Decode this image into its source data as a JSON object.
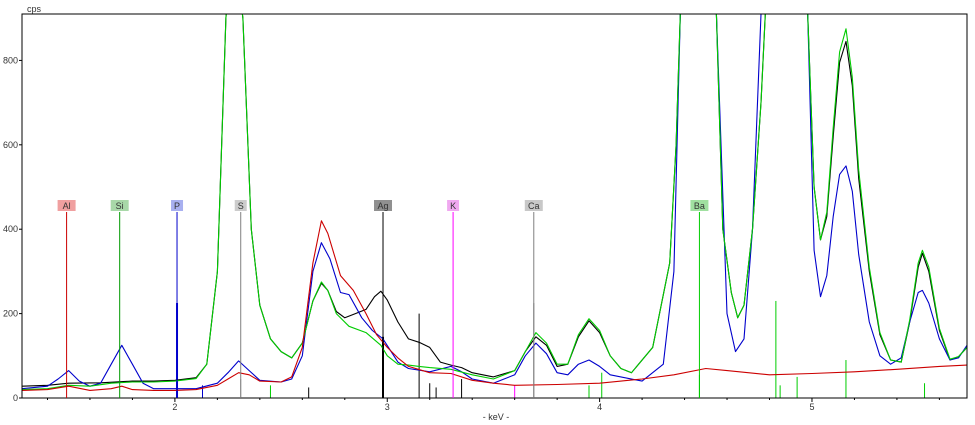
{
  "chart_data": {
    "type": "line",
    "title": "",
    "ylabel": "cps",
    "xlabel": "- keV -",
    "xlim": [
      1.28,
      5.73
    ],
    "ylim": [
      0,
      910
    ],
    "x_ticks": [
      2,
      3,
      4,
      5
    ],
    "y_ticks": [
      0,
      200,
      400,
      600,
      800
    ],
    "grid": false,
    "series": [
      {
        "color": "#000000",
        "points": [
          [
            1.28,
            28
          ],
          [
            1.4,
            30
          ],
          [
            1.5,
            35
          ],
          [
            1.65,
            36
          ],
          [
            1.8,
            40
          ],
          [
            1.9,
            40
          ],
          [
            2.0,
            42
          ],
          [
            2.1,
            48
          ],
          [
            2.15,
            80
          ],
          [
            2.2,
            300
          ],
          [
            2.24,
            900
          ],
          [
            2.27,
            1100
          ],
          [
            2.32,
            900
          ],
          [
            2.36,
            400
          ],
          [
            2.4,
            220
          ],
          [
            2.45,
            140
          ],
          [
            2.5,
            110
          ],
          [
            2.55,
            95
          ],
          [
            2.6,
            130
          ],
          [
            2.65,
            230
          ],
          [
            2.69,
            272
          ],
          [
            2.72,
            255
          ],
          [
            2.76,
            205
          ],
          [
            2.8,
            190
          ],
          [
            2.85,
            200
          ],
          [
            2.9,
            210
          ],
          [
            2.94,
            240
          ],
          [
            2.97,
            253
          ],
          [
            3.0,
            232
          ],
          [
            3.05,
            180
          ],
          [
            3.1,
            140
          ],
          [
            3.15,
            132
          ],
          [
            3.2,
            120
          ],
          [
            3.25,
            85
          ],
          [
            3.3,
            78
          ],
          [
            3.35,
            72
          ],
          [
            3.4,
            60
          ],
          [
            3.5,
            50
          ],
          [
            3.6,
            65
          ],
          [
            3.65,
            110
          ],
          [
            3.7,
            145
          ],
          [
            3.75,
            125
          ],
          [
            3.8,
            75
          ],
          [
            3.85,
            80
          ],
          [
            3.9,
            145
          ],
          [
            3.95,
            183
          ],
          [
            4.0,
            155
          ],
          [
            4.05,
            100
          ],
          [
            4.1,
            70
          ],
          [
            4.15,
            60
          ],
          [
            4.25,
            120
          ],
          [
            4.33,
            320
          ],
          [
            4.36,
            600
          ],
          [
            4.38,
            910
          ],
          [
            4.55,
            910
          ],
          [
            4.58,
            400
          ],
          [
            4.62,
            250
          ],
          [
            4.65,
            190
          ],
          [
            4.68,
            220
          ],
          [
            4.72,
            400
          ],
          [
            4.76,
            700
          ],
          [
            4.78,
            910
          ],
          [
            4.98,
            910
          ],
          [
            5.01,
            500
          ],
          [
            5.04,
            375
          ],
          [
            5.07,
            430
          ],
          [
            5.1,
            620
          ],
          [
            5.13,
            795
          ],
          [
            5.16,
            845
          ],
          [
            5.19,
            740
          ],
          [
            5.22,
            520
          ],
          [
            5.27,
            300
          ],
          [
            5.32,
            150
          ],
          [
            5.37,
            90
          ],
          [
            5.42,
            85
          ],
          [
            5.46,
            180
          ],
          [
            5.5,
            310
          ],
          [
            5.52,
            343
          ],
          [
            5.55,
            300
          ],
          [
            5.6,
            160
          ],
          [
            5.65,
            90
          ],
          [
            5.69,
            98
          ],
          [
            5.73,
            120
          ]
        ]
      },
      {
        "color": "#0000cc",
        "points": [
          [
            1.28,
            22
          ],
          [
            1.4,
            28
          ],
          [
            1.45,
            45
          ],
          [
            1.5,
            65
          ],
          [
            1.55,
            40
          ],
          [
            1.6,
            28
          ],
          [
            1.65,
            35
          ],
          [
            1.7,
            80
          ],
          [
            1.75,
            125
          ],
          [
            1.8,
            80
          ],
          [
            1.85,
            35
          ],
          [
            1.9,
            22
          ],
          [
            2.0,
            22
          ],
          [
            2.1,
            22
          ],
          [
            2.2,
            35
          ],
          [
            2.25,
            60
          ],
          [
            2.3,
            88
          ],
          [
            2.35,
            65
          ],
          [
            2.4,
            42
          ],
          [
            2.5,
            38
          ],
          [
            2.55,
            45
          ],
          [
            2.6,
            100
          ],
          [
            2.65,
            300
          ],
          [
            2.69,
            368
          ],
          [
            2.73,
            330
          ],
          [
            2.78,
            250
          ],
          [
            2.82,
            245
          ],
          [
            2.88,
            190
          ],
          [
            2.93,
            160
          ],
          [
            2.98,
            140
          ],
          [
            3.05,
            85
          ],
          [
            3.1,
            70
          ],
          [
            3.2,
            62
          ],
          [
            3.3,
            75
          ],
          [
            3.35,
            62
          ],
          [
            3.4,
            45
          ],
          [
            3.5,
            35
          ],
          [
            3.6,
            55
          ],
          [
            3.65,
            100
          ],
          [
            3.7,
            130
          ],
          [
            3.75,
            105
          ],
          [
            3.8,
            60
          ],
          [
            3.85,
            55
          ],
          [
            3.9,
            80
          ],
          [
            3.95,
            90
          ],
          [
            4.0,
            75
          ],
          [
            4.05,
            55
          ],
          [
            4.2,
            40
          ],
          [
            4.3,
            80
          ],
          [
            4.35,
            300
          ],
          [
            4.38,
            910
          ],
          [
            4.55,
            910
          ],
          [
            4.6,
            200
          ],
          [
            4.64,
            110
          ],
          [
            4.68,
            140
          ],
          [
            4.72,
            400
          ],
          [
            4.76,
            910
          ],
          [
            4.98,
            910
          ],
          [
            5.01,
            350
          ],
          [
            5.04,
            240
          ],
          [
            5.07,
            290
          ],
          [
            5.1,
            430
          ],
          [
            5.13,
            530
          ],
          [
            5.16,
            550
          ],
          [
            5.19,
            490
          ],
          [
            5.22,
            340
          ],
          [
            5.27,
            180
          ],
          [
            5.32,
            100
          ],
          [
            5.37,
            80
          ],
          [
            5.42,
            95
          ],
          [
            5.46,
            180
          ],
          [
            5.5,
            250
          ],
          [
            5.52,
            255
          ],
          [
            5.55,
            225
          ],
          [
            5.6,
            140
          ],
          [
            5.65,
            90
          ],
          [
            5.69,
            95
          ],
          [
            5.73,
            125
          ]
        ]
      },
      {
        "color": "#00cc00",
        "points": [
          [
            1.28,
            20
          ],
          [
            1.4,
            22
          ],
          [
            1.5,
            30
          ],
          [
            1.6,
            28
          ],
          [
            1.7,
            35
          ],
          [
            1.8,
            38
          ],
          [
            1.9,
            38
          ],
          [
            2.0,
            40
          ],
          [
            2.1,
            46
          ],
          [
            2.15,
            80
          ],
          [
            2.2,
            300
          ],
          [
            2.24,
            900
          ],
          [
            2.27,
            1100
          ],
          [
            2.32,
            900
          ],
          [
            2.36,
            400
          ],
          [
            2.4,
            220
          ],
          [
            2.45,
            140
          ],
          [
            2.5,
            110
          ],
          [
            2.55,
            95
          ],
          [
            2.6,
            130
          ],
          [
            2.65,
            230
          ],
          [
            2.69,
            275
          ],
          [
            2.72,
            255
          ],
          [
            2.76,
            200
          ],
          [
            2.82,
            170
          ],
          [
            2.9,
            155
          ],
          [
            2.97,
            125
          ],
          [
            3.0,
            100
          ],
          [
            3.05,
            80
          ],
          [
            3.1,
            78
          ],
          [
            3.15,
            75
          ],
          [
            3.2,
            72
          ],
          [
            3.3,
            68
          ],
          [
            3.4,
            55
          ],
          [
            3.5,
            45
          ],
          [
            3.6,
            65
          ],
          [
            3.65,
            110
          ],
          [
            3.7,
            155
          ],
          [
            3.75,
            130
          ],
          [
            3.8,
            80
          ],
          [
            3.85,
            80
          ],
          [
            3.9,
            150
          ],
          [
            3.95,
            188
          ],
          [
            4.0,
            160
          ],
          [
            4.05,
            100
          ],
          [
            4.1,
            70
          ],
          [
            4.15,
            60
          ],
          [
            4.25,
            120
          ],
          [
            4.33,
            320
          ],
          [
            4.36,
            600
          ],
          [
            4.38,
            910
          ],
          [
            4.55,
            910
          ],
          [
            4.58,
            400
          ],
          [
            4.62,
            250
          ],
          [
            4.65,
            190
          ],
          [
            4.68,
            220
          ],
          [
            4.72,
            400
          ],
          [
            4.76,
            700
          ],
          [
            4.78,
            910
          ],
          [
            4.98,
            910
          ],
          [
            5.01,
            500
          ],
          [
            5.04,
            375
          ],
          [
            5.07,
            440
          ],
          [
            5.1,
            640
          ],
          [
            5.13,
            820
          ],
          [
            5.16,
            875
          ],
          [
            5.19,
            760
          ],
          [
            5.22,
            540
          ],
          [
            5.27,
            310
          ],
          [
            5.32,
            155
          ],
          [
            5.37,
            90
          ],
          [
            5.42,
            85
          ],
          [
            5.46,
            185
          ],
          [
            5.5,
            320
          ],
          [
            5.52,
            350
          ],
          [
            5.55,
            310
          ],
          [
            5.6,
            165
          ],
          [
            5.65,
            92
          ],
          [
            5.69,
            98
          ],
          [
            5.73,
            120
          ]
        ]
      },
      {
        "color": "#cc0000",
        "points": [
          [
            1.28,
            18
          ],
          [
            1.4,
            20
          ],
          [
            1.5,
            28
          ],
          [
            1.6,
            18
          ],
          [
            1.7,
            22
          ],
          [
            1.75,
            28
          ],
          [
            1.8,
            20
          ],
          [
            1.9,
            18
          ],
          [
            2.0,
            18
          ],
          [
            2.1,
            20
          ],
          [
            2.2,
            30
          ],
          [
            2.25,
            45
          ],
          [
            2.3,
            60
          ],
          [
            2.35,
            55
          ],
          [
            2.4,
            40
          ],
          [
            2.5,
            38
          ],
          [
            2.55,
            50
          ],
          [
            2.6,
            120
          ],
          [
            2.65,
            320
          ],
          [
            2.69,
            420
          ],
          [
            2.72,
            390
          ],
          [
            2.78,
            290
          ],
          [
            2.84,
            255
          ],
          [
            2.9,
            200
          ],
          [
            2.95,
            150
          ],
          [
            3.0,
            120
          ],
          [
            3.05,
            95
          ],
          [
            3.1,
            75
          ],
          [
            3.2,
            60
          ],
          [
            3.3,
            58
          ],
          [
            3.4,
            42
          ],
          [
            3.5,
            35
          ],
          [
            3.6,
            30
          ],
          [
            3.8,
            32
          ],
          [
            4.0,
            35
          ],
          [
            4.2,
            45
          ],
          [
            4.35,
            55
          ],
          [
            4.5,
            70
          ],
          [
            4.6,
            65
          ],
          [
            4.8,
            55
          ],
          [
            5.0,
            58
          ],
          [
            5.2,
            62
          ],
          [
            5.4,
            68
          ],
          [
            5.6,
            75
          ],
          [
            5.73,
            78
          ]
        ]
      }
    ],
    "element_markers": [
      {
        "label": "Al",
        "x": 1.49,
        "color": "#cc0000",
        "box": "#f0a0a0"
      },
      {
        "label": "Si",
        "x": 1.74,
        "color": "#009900",
        "box": "#a8d8a8"
      },
      {
        "label": "P",
        "x": 2.01,
        "color": "#0000cc",
        "box": "#a8b0f0"
      },
      {
        "label": "S",
        "x": 2.31,
        "color": "#808080",
        "box": "#cccccc"
      },
      {
        "label": "Ag",
        "x": 2.98,
        "color": "#000000",
        "box": "#909090"
      },
      {
        "label": "K",
        "x": 3.31,
        "color": "#ff00ff",
        "box": "#f0a8f0"
      },
      {
        "label": "Ca",
        "x": 3.69,
        "color": "#808080",
        "box": "#c8c8c8"
      },
      {
        "label": "Ba",
        "x": 4.47,
        "color": "#00cc00",
        "box": "#a0e0a0"
      }
    ],
    "marker_top_value": 455
  },
  "colors": {
    "axis": "#000000",
    "background": "#ffffff"
  }
}
